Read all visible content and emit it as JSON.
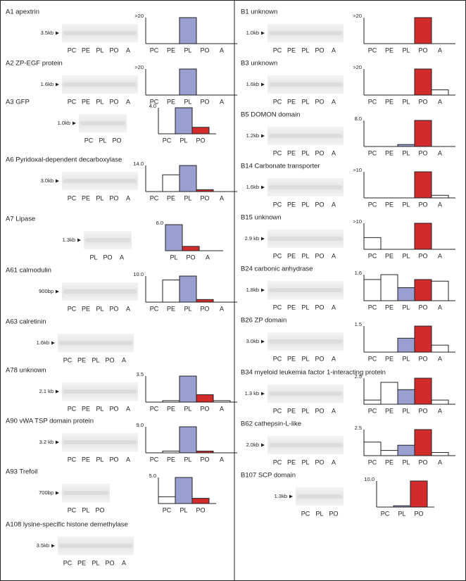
{
  "chart_data": [
    {
      "type": "bar",
      "title": "A1 apextrin",
      "blot_size": "3.5kb",
      "blot_lanes": [
        "PC",
        "PE",
        "PL",
        "PO",
        "A"
      ],
      "categories": [
        "PC",
        "PE",
        "PL",
        "PO",
        "A"
      ],
      "values": [
        0,
        0,
        20,
        0,
        0
      ],
      "colors": [
        "#ffffff",
        "#ffffff",
        "#9a9fd1",
        "#d22b2b",
        "#ffffff"
      ],
      "ylim": [
        0,
        20
      ],
      "yticks": [
        {
          "value": 20,
          "label": ">20"
        }
      ]
    },
    {
      "type": "bar",
      "title": "A2 ZP-EGF protein",
      "blot_size": "1.6kb",
      "blot_lanes": [
        "PC",
        "PE",
        "PL",
        "PO",
        "A"
      ],
      "categories": [
        "PC",
        "PE",
        "PL",
        "PO",
        "A"
      ],
      "values": [
        0,
        0,
        20,
        0,
        0
      ],
      "colors": [
        "#ffffff",
        "#ffffff",
        "#9a9fd1",
        "#d22b2b",
        "#ffffff"
      ],
      "ylim": [
        0,
        20
      ],
      "yticks": [
        {
          "value": 20,
          "label": ">20"
        }
      ]
    },
    {
      "type": "bar",
      "title": "A3 GFP",
      "blot_size": "1.0kb",
      "blot_lanes": [
        "PC",
        "PL",
        "PO"
      ],
      "categories": [
        "PC",
        "PL",
        "PO"
      ],
      "values": [
        0,
        4,
        1
      ],
      "colors": [
        "#ffffff",
        "#9a9fd1",
        "#d22b2b"
      ],
      "ylim": [
        0,
        4
      ],
      "yticks": [
        {
          "value": 4,
          "label": "4.0"
        }
      ]
    },
    {
      "type": "bar",
      "title": "A6 Pyridoxal-dependent decarboxylase",
      "blot_size": "3.0kb",
      "blot_lanes": [
        "PC",
        "PE",
        "PL",
        "PO",
        "A"
      ],
      "categories": [
        "PC",
        "PE",
        "PL",
        "PO",
        "A"
      ],
      "values": [
        0,
        9,
        14,
        1,
        0
      ],
      "colors": [
        "#ffffff",
        "#ffffff",
        "#9a9fd1",
        "#d22b2b",
        "#ffffff"
      ],
      "ylim": [
        0,
        14
      ],
      "yticks": [
        {
          "value": 14,
          "label": "14.0"
        }
      ]
    },
    {
      "type": "bar",
      "title": "A7 Lipase",
      "blot_size": "1.3kb",
      "blot_lanes": [
        "PL",
        "PO",
        "A"
      ],
      "categories": [
        "PL",
        "PO",
        "A"
      ],
      "values": [
        6,
        1,
        0
      ],
      "colors": [
        "#9a9fd1",
        "#d22b2b",
        "#ffffff"
      ],
      "ylim": [
        0,
        6
      ],
      "yticks": [
        {
          "value": 6,
          "label": "6.0"
        }
      ]
    },
    {
      "type": "bar",
      "title": "A61 calmodulin",
      "blot_size": "900bp",
      "blot_lanes": [
        "PC",
        "PE",
        "PL",
        "PO",
        "A"
      ],
      "categories": [
        "PC",
        "PE",
        "PL",
        "PO",
        "A"
      ],
      "values": [
        0,
        8.5,
        10,
        1,
        0
      ],
      "colors": [
        "#ffffff",
        "#ffffff",
        "#9a9fd1",
        "#d22b2b",
        "#ffffff"
      ],
      "ylim": [
        0,
        10
      ],
      "yticks": [
        {
          "value": 10,
          "label": "10.0"
        }
      ]
    },
    {
      "type": "blot",
      "title": "A63 calretinin",
      "blot_size": "1.6kb",
      "blot_lanes": [
        "PC",
        "PE",
        "PL",
        "PO",
        "A"
      ]
    },
    {
      "type": "bar",
      "title": "A78 unknown",
      "blot_size": "2.1 kb",
      "blot_lanes": [
        "PC",
        "PE",
        "PL",
        "PO",
        "A"
      ],
      "categories": [
        "PC",
        "PE",
        "PL",
        "PO",
        "A"
      ],
      "values": [
        0,
        0.2,
        3.5,
        1,
        0.2
      ],
      "colors": [
        "#ffffff",
        "#ffffff",
        "#9a9fd1",
        "#d22b2b",
        "#ffffff"
      ],
      "ylim": [
        0,
        3.5
      ],
      "yticks": [
        3.5
      ]
    },
    {
      "type": "bar",
      "title": "A90 vWA TSP domain protein",
      "blot_size": "3.2 kb",
      "blot_lanes": [
        "PC",
        "PE",
        "PL",
        "PO",
        "A"
      ],
      "categories": [
        "PC",
        "PE",
        "PL",
        "PO",
        "A"
      ],
      "values": [
        0,
        0.6,
        9,
        0.6,
        0
      ],
      "colors": [
        "#ffffff",
        "#ffffff",
        "#9a9fd1",
        "#d22b2b",
        "#ffffff"
      ],
      "ylim": [
        0,
        9
      ],
      "yticks": [
        {
          "value": 9,
          "label": "9.0"
        }
      ]
    },
    {
      "type": "bar",
      "title": "A93 Trefoil",
      "blot_size": "700bp",
      "blot_lanes": [
        "PC",
        "PL",
        "PO"
      ],
      "categories": [
        "PC",
        "PL",
        "PO"
      ],
      "values": [
        1.3,
        5,
        1
      ],
      "colors": [
        "#ffffff",
        "#9a9fd1",
        "#d22b2b"
      ],
      "ylim": [
        0,
        5
      ],
      "yticks": [
        {
          "value": 5,
          "label": "5.0"
        }
      ]
    },
    {
      "type": "blot",
      "title": "A108 lysine-specific histone demethylase",
      "blot_size": "3.5kb",
      "blot_lanes": [
        "PC",
        "PE",
        "PL",
        "PO",
        "A"
      ]
    },
    {
      "type": "bar",
      "title": "B1 unknown",
      "blot_size": "1.0kb",
      "blot_lanes": [
        "PC",
        "PE",
        "PL",
        "PO",
        "A"
      ],
      "categories": [
        "PC",
        "PE",
        "PL",
        "PO",
        "A"
      ],
      "values": [
        0,
        0,
        0,
        20,
        0
      ],
      "colors": [
        "#ffffff",
        "#ffffff",
        "#9a9fd1",
        "#d22b2b",
        "#ffffff"
      ],
      "ylim": [
        0,
        20
      ],
      "yticks": [
        {
          "value": 20,
          "label": ">20"
        }
      ]
    },
    {
      "type": "bar",
      "title": "B3 unknown",
      "blot_size": "1.6kb",
      "blot_lanes": [
        "PC",
        "PE",
        "PL",
        "PO",
        "A"
      ],
      "categories": [
        "PC",
        "PE",
        "PL",
        "PO",
        "A"
      ],
      "values": [
        0,
        0,
        0,
        20,
        4
      ],
      "colors": [
        "#ffffff",
        "#ffffff",
        "#9a9fd1",
        "#d22b2b",
        "#ffffff"
      ],
      "ylim": [
        0,
        20
      ],
      "yticks": [
        {
          "value": 20,
          "label": ">20"
        }
      ]
    },
    {
      "type": "bar",
      "title": "B5 DOMON domain",
      "blot_size": "1.2kb",
      "blot_lanes": [
        "PC",
        "PE",
        "PL",
        "PO",
        "A"
      ],
      "categories": [
        "PC",
        "PE",
        "PL",
        "PO",
        "A"
      ],
      "values": [
        0,
        0,
        0.6,
        8,
        0
      ],
      "colors": [
        "#ffffff",
        "#ffffff",
        "#9a9fd1",
        "#d22b2b",
        "#ffffff"
      ],
      "ylim": [
        0,
        8
      ],
      "yticks": [
        {
          "value": 8,
          "label": "8.0"
        }
      ]
    },
    {
      "type": "bar",
      "title": "B14 Carbonate transporter",
      "blot_size": "1.6kb",
      "blot_lanes": [
        "PC",
        "PE",
        "PL",
        "PO",
        "A"
      ],
      "categories": [
        "PC",
        "PE",
        "PL",
        "PO",
        "A"
      ],
      "values": [
        0,
        0,
        0,
        10,
        1
      ],
      "colors": [
        "#ffffff",
        "#ffffff",
        "#9a9fd1",
        "#d22b2b",
        "#ffffff"
      ],
      "ylim": [
        0,
        10
      ],
      "yticks": [
        {
          "value": 10,
          "label": ">10"
        }
      ]
    },
    {
      "type": "bar",
      "title": "B15 unknown",
      "blot_size": "2.9 kb",
      "blot_lanes": [
        "PC",
        "PE",
        "PL",
        "PO",
        "A"
      ],
      "categories": [
        "PC",
        "PE",
        "PL",
        "PO",
        "A"
      ],
      "values": [
        4.5,
        0,
        0,
        10,
        0
      ],
      "colors": [
        "#ffffff",
        "#ffffff",
        "#9a9fd1",
        "#d22b2b",
        "#ffffff"
      ],
      "ylim": [
        0,
        10
      ],
      "yticks": [
        {
          "value": 10,
          "label": ">10"
        }
      ]
    },
    {
      "type": "bar",
      "title": "B24 carbonic anhydrase",
      "blot_size": "1.8kb",
      "blot_lanes": [
        "PC",
        "PE",
        "PL",
        "PO",
        "A"
      ],
      "categories": [
        "PC",
        "PE",
        "PL",
        "PO",
        "A"
      ],
      "values": [
        1.3,
        1.6,
        0.8,
        1.3,
        1.2
      ],
      "colors": [
        "#ffffff",
        "#ffffff",
        "#9a9fd1",
        "#d22b2b",
        "#ffffff"
      ],
      "ylim": [
        0,
        1.6
      ],
      "yticks": [
        1.6
      ]
    },
    {
      "type": "bar",
      "title": "B26 ZP domain",
      "blot_size": "3.0kb",
      "blot_lanes": [
        "PC",
        "PE",
        "PL",
        "PO",
        "A"
      ],
      "categories": [
        "PC",
        "PE",
        "PL",
        "PO",
        "A"
      ],
      "values": [
        0,
        0,
        0.8,
        1.5,
        0.4
      ],
      "colors": [
        "#ffffff",
        "#ffffff",
        "#9a9fd1",
        "#d22b2b",
        "#ffffff"
      ],
      "ylim": [
        0,
        1.5
      ],
      "yticks": [
        1.5
      ]
    },
    {
      "type": "bar",
      "title": "B34 myeloid leukemia factor 1-interacting protein",
      "blot_size": "1.3 kb",
      "blot_lanes": [
        "PC",
        "PE",
        "PL",
        "PO",
        "A"
      ],
      "categories": [
        "PC",
        "PE",
        "PL",
        "PO",
        "A"
      ],
      "values": [
        0.4,
        2.1,
        1.4,
        2.5,
        0.4
      ],
      "colors": [
        "#ffffff",
        "#ffffff",
        "#9a9fd1",
        "#d22b2b",
        "#ffffff"
      ],
      "ylim": [
        0,
        2.5
      ],
      "yticks": [
        2.5
      ]
    },
    {
      "type": "bar",
      "title": "B62 cathepsin-L-like",
      "blot_size": "2.0kb",
      "blot_lanes": [
        "PC",
        "PE",
        "PL",
        "PO",
        "A"
      ],
      "categories": [
        "PC",
        "PE",
        "PL",
        "PO",
        "A"
      ],
      "values": [
        1.3,
        0.5,
        1,
        2.5,
        0.3
      ],
      "colors": [
        "#ffffff",
        "#ffffff",
        "#9a9fd1",
        "#d22b2b",
        "#ffffff"
      ],
      "ylim": [
        0,
        2.5
      ],
      "yticks": [
        2.5
      ]
    },
    {
      "type": "bar",
      "title": "B107 SCP domain",
      "blot_size": "1.3kb",
      "blot_lanes": [
        "PC",
        "PL",
        "PO"
      ],
      "categories": [
        "PC",
        "PL",
        "PO"
      ],
      "values": [
        0,
        0.5,
        10
      ],
      "colors": [
        "#ffffff",
        "#9a9fd1",
        "#d22b2b"
      ],
      "ylim": [
        0,
        10
      ],
      "yticks": [
        {
          "value": 10,
          "label": "10.0"
        }
      ]
    }
  ]
}
